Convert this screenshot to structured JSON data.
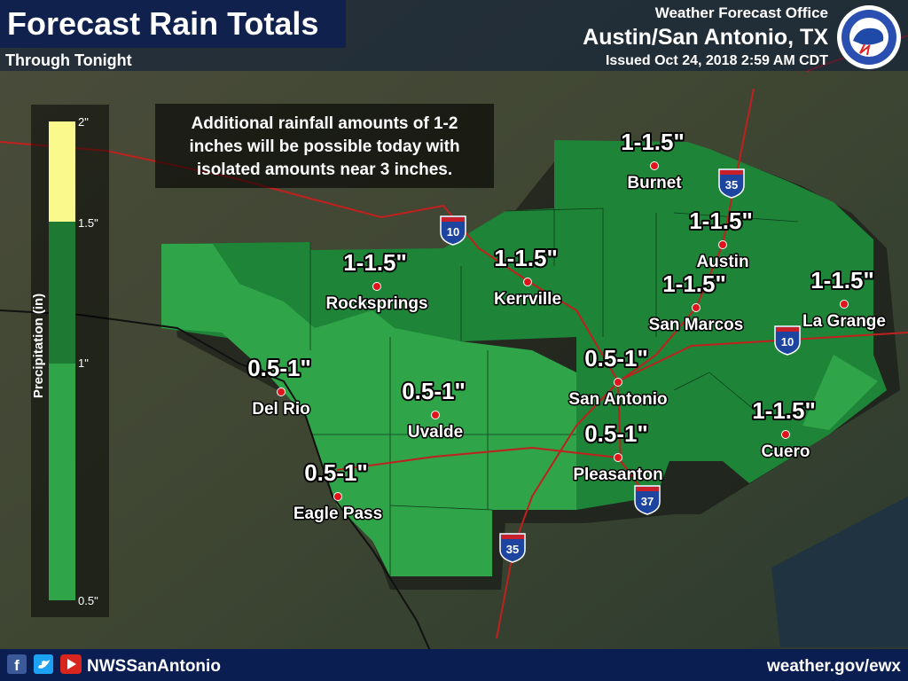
{
  "header": {
    "title": "Forecast Rain Totals",
    "subtitle": "Through Tonight",
    "office": "Weather Forecast Office",
    "location": "Austin/San Antonio, TX",
    "issued": "Issued Oct 24, 2018 2:59 AM CDT"
  },
  "note": [
    "Additional rainfall amounts of 1-2",
    "inches will be possible today with",
    "isolated amounts near 3 inches."
  ],
  "legend": {
    "title": "Precipitation (in)",
    "ticks": [
      "2\"",
      "1.5\"",
      "1\"",
      "0.5\""
    ]
  },
  "cities": [
    {
      "name": "Burnet",
      "amount": "1-1.5\""
    },
    {
      "name": "Austin",
      "amount": "1-1.5\""
    },
    {
      "name": "Rocksprings",
      "amount": "1-1.5\""
    },
    {
      "name": "Kerrville",
      "amount": "1-1.5\""
    },
    {
      "name": "San Marcos",
      "amount": "1-1.5\""
    },
    {
      "name": "La Grange",
      "amount": "1-1.5\""
    },
    {
      "name": "Del Rio",
      "amount": "0.5-1\""
    },
    {
      "name": "San Antonio",
      "amount": "0.5-1\""
    },
    {
      "name": "Uvalde",
      "amount": "0.5-1\""
    },
    {
      "name": "Pleasanton",
      "amount": "0.5-1\""
    },
    {
      "name": "Eagle Pass",
      "amount": "0.5-1\""
    },
    {
      "name": "Cuero",
      "amount": "1-1.5\""
    }
  ],
  "interstates": [
    "10",
    "35",
    "10",
    "37",
    "35"
  ],
  "footer": {
    "handle": "NWSSanAntonio",
    "url": "weather.gov/ewx"
  }
}
